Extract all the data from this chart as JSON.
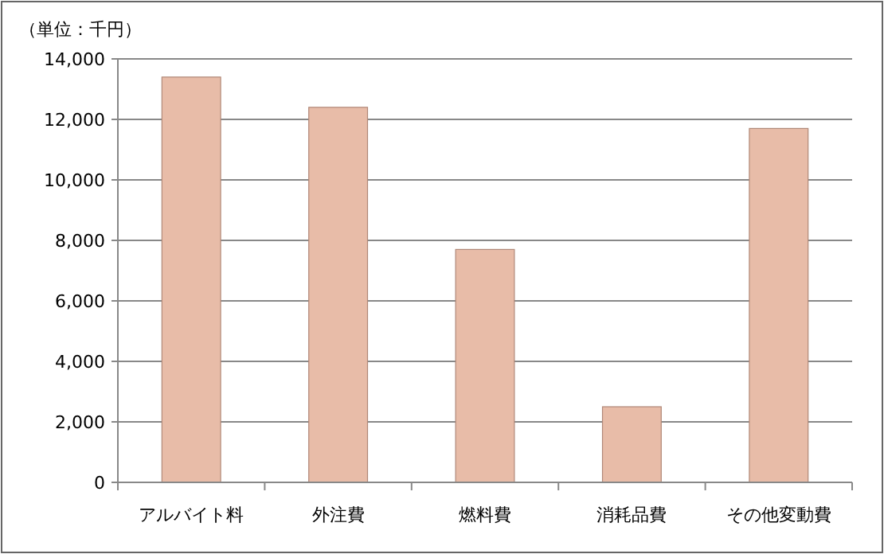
{
  "chart_data": {
    "type": "bar",
    "ylabel": "（単位：千円）",
    "categories": [
      "アルバイト料",
      "外注費",
      "燃料費",
      "消耗品費",
      "その他変動費"
    ],
    "values": [
      13400,
      12400,
      7700,
      2500,
      11700
    ],
    "color": "#e8bca8",
    "ylim": [
      0,
      14000
    ],
    "yticks": [
      {
        "value": 0,
        "label": "0"
      },
      {
        "value": 2000,
        "label": "2,000"
      },
      {
        "value": 4000,
        "label": "4,000"
      },
      {
        "value": 6000,
        "label": "6,000"
      },
      {
        "value": 8000,
        "label": "8,000"
      },
      {
        "value": 10000,
        "label": "10,000"
      },
      {
        "value": 12000,
        "label": "12,000"
      },
      {
        "value": 14000,
        "label": "14,000"
      }
    ],
    "grid": true
  }
}
